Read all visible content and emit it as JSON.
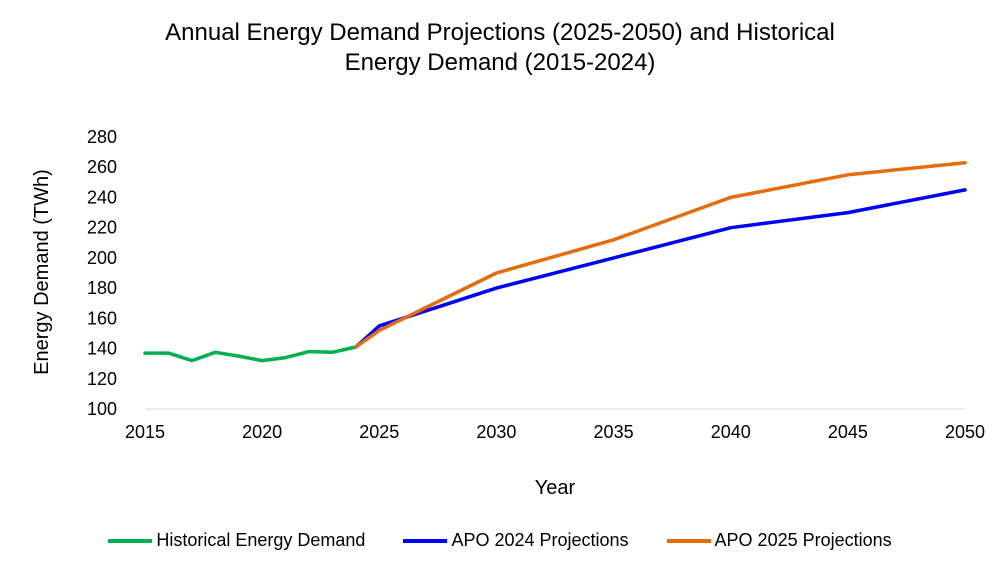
{
  "chart_data": {
    "type": "line",
    "title_line1": "Annual Energy Demand Projections (2025-2050) and Historical",
    "title_line2": "Energy Demand (2015-2024)",
    "xlabel": "Year",
    "ylabel": "Energy Demand (TWh)",
    "xlim": [
      2015,
      2050
    ],
    "ylim": [
      100,
      280
    ],
    "x_ticks": [
      "2015",
      "2020",
      "2025",
      "2030",
      "2035",
      "2040",
      "2045",
      "2050"
    ],
    "y_ticks": [
      "100",
      "120",
      "140",
      "160",
      "180",
      "200",
      "220",
      "240",
      "260",
      "280"
    ],
    "grid": false,
    "series": [
      {
        "name": "Historical Energy Demand",
        "color": "#00B050",
        "x": [
          2015,
          2016,
          2017,
          2018,
          2019,
          2020,
          2021,
          2022,
          2023,
          2024
        ],
        "y": [
          137,
          137,
          132,
          137.5,
          135,
          132,
          134,
          138,
          137.5,
          141
        ]
      },
      {
        "name": "APO 2024 Projections",
        "color": "#0000FF",
        "x": [
          2024,
          2025,
          2030,
          2035,
          2040,
          2045,
          2050
        ],
        "y": [
          141,
          155,
          180,
          200,
          220,
          230,
          245
        ]
      },
      {
        "name": "APO 2025 Projections",
        "color": "#E46C0A",
        "x": [
          2024,
          2025,
          2030,
          2035,
          2040,
          2045,
          2050
        ],
        "y": [
          141,
          152,
          190,
          212,
          240,
          255,
          263
        ]
      }
    ]
  }
}
